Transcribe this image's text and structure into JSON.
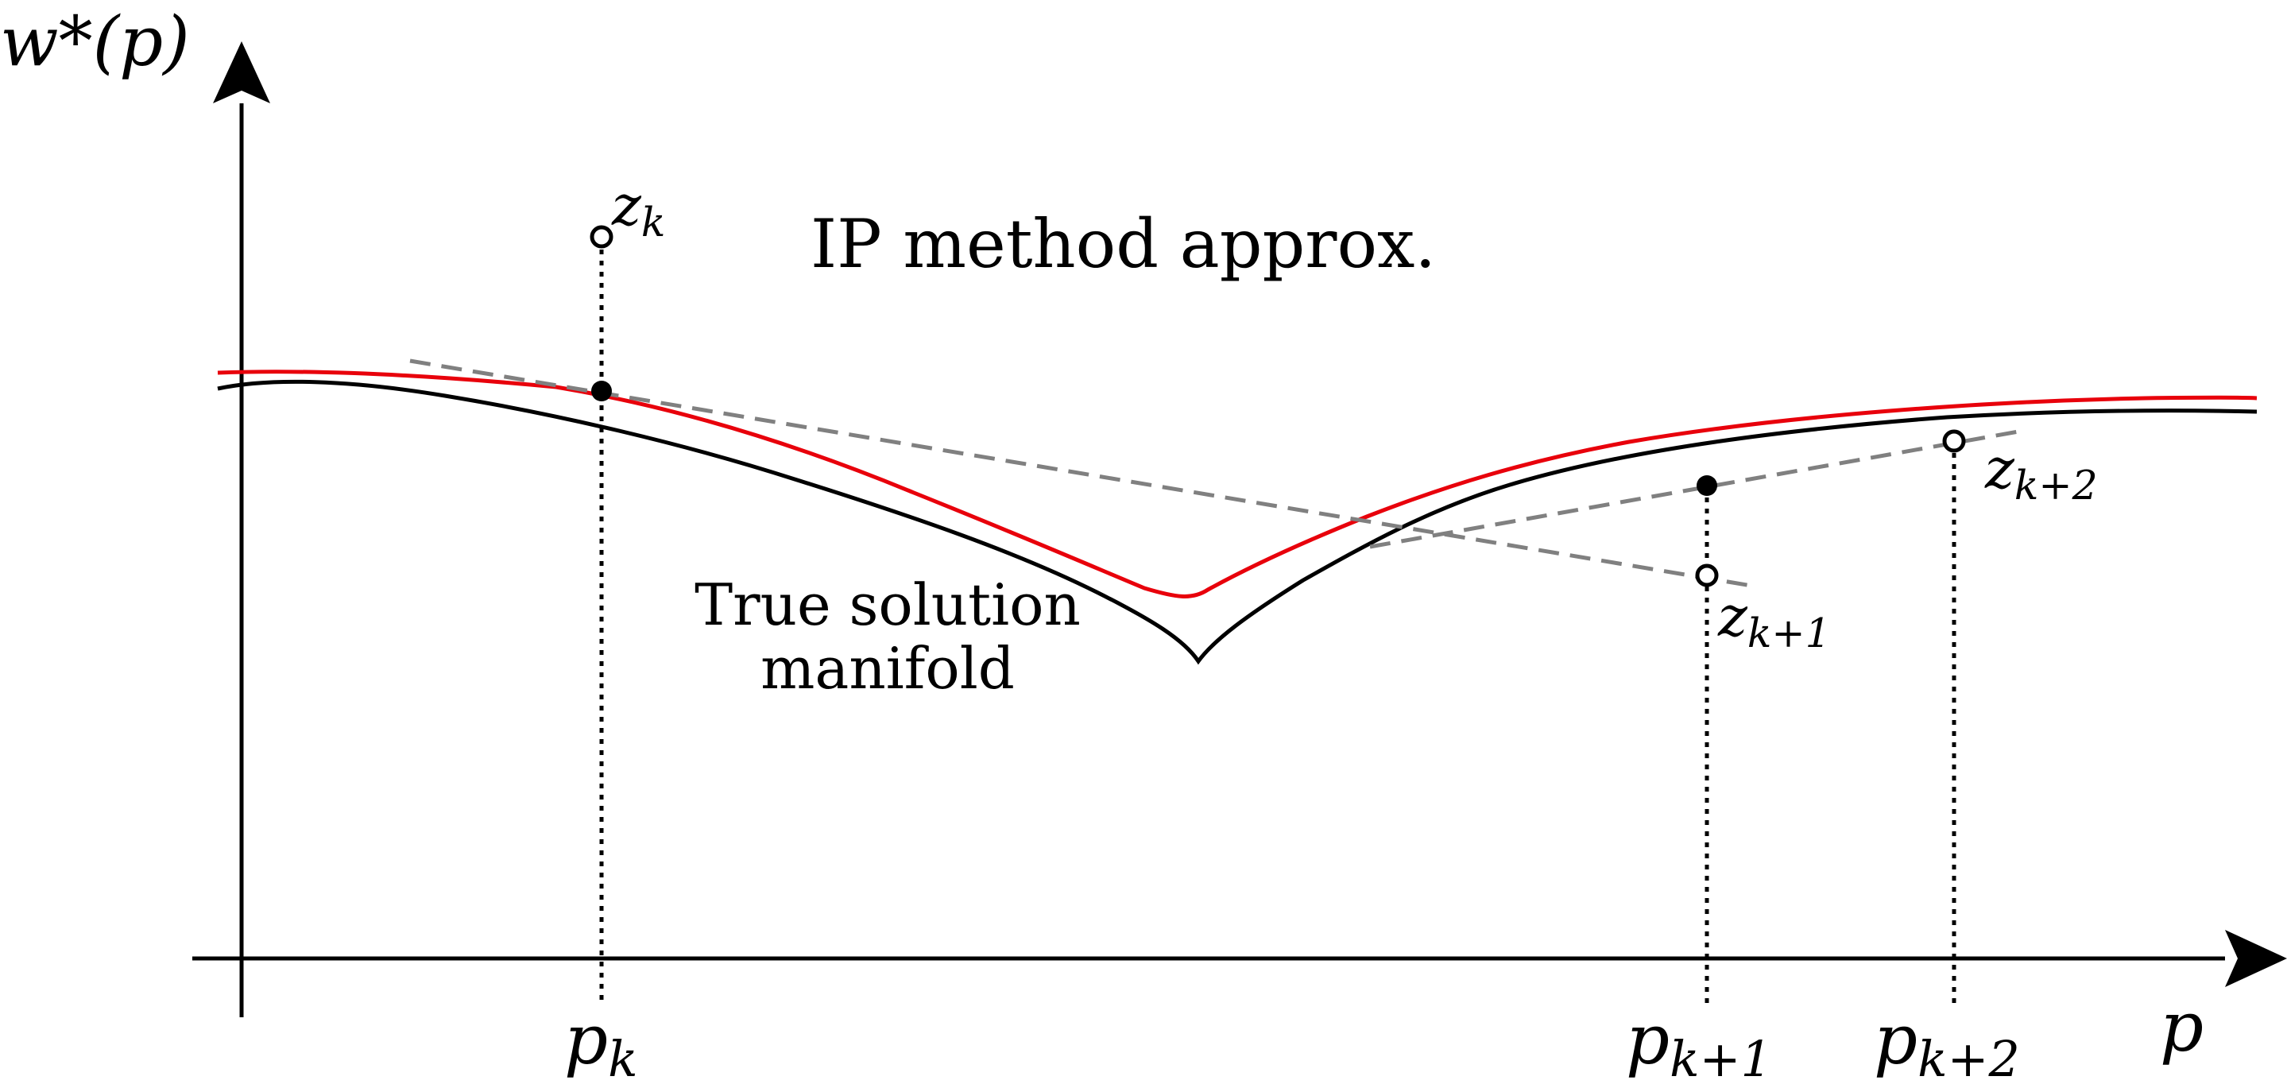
{
  "axes": {
    "y_label": "w*(p)",
    "x_label": "p"
  },
  "ticks": [
    {
      "id": "pk",
      "base": "p",
      "sub": "k"
    },
    {
      "id": "pk1",
      "base": "p",
      "sub": "k+1"
    },
    {
      "id": "pk2",
      "base": "p",
      "sub": "k+2"
    }
  ],
  "points": [
    {
      "id": "zk",
      "base": "z",
      "sub": "k"
    },
    {
      "id": "zk1",
      "base": "z",
      "sub": "k+1"
    },
    {
      "id": "zk2",
      "base": "z",
      "sub": "k+2"
    }
  ],
  "labels": {
    "ip_approx": "IP method approx.",
    "true_manifold_line1": "True solution",
    "true_manifold_line2": "manifold"
  },
  "colors": {
    "ip_curve": "#e8000b",
    "true_curve": "#000000",
    "tangent": "#808080",
    "axis": "#000000"
  }
}
